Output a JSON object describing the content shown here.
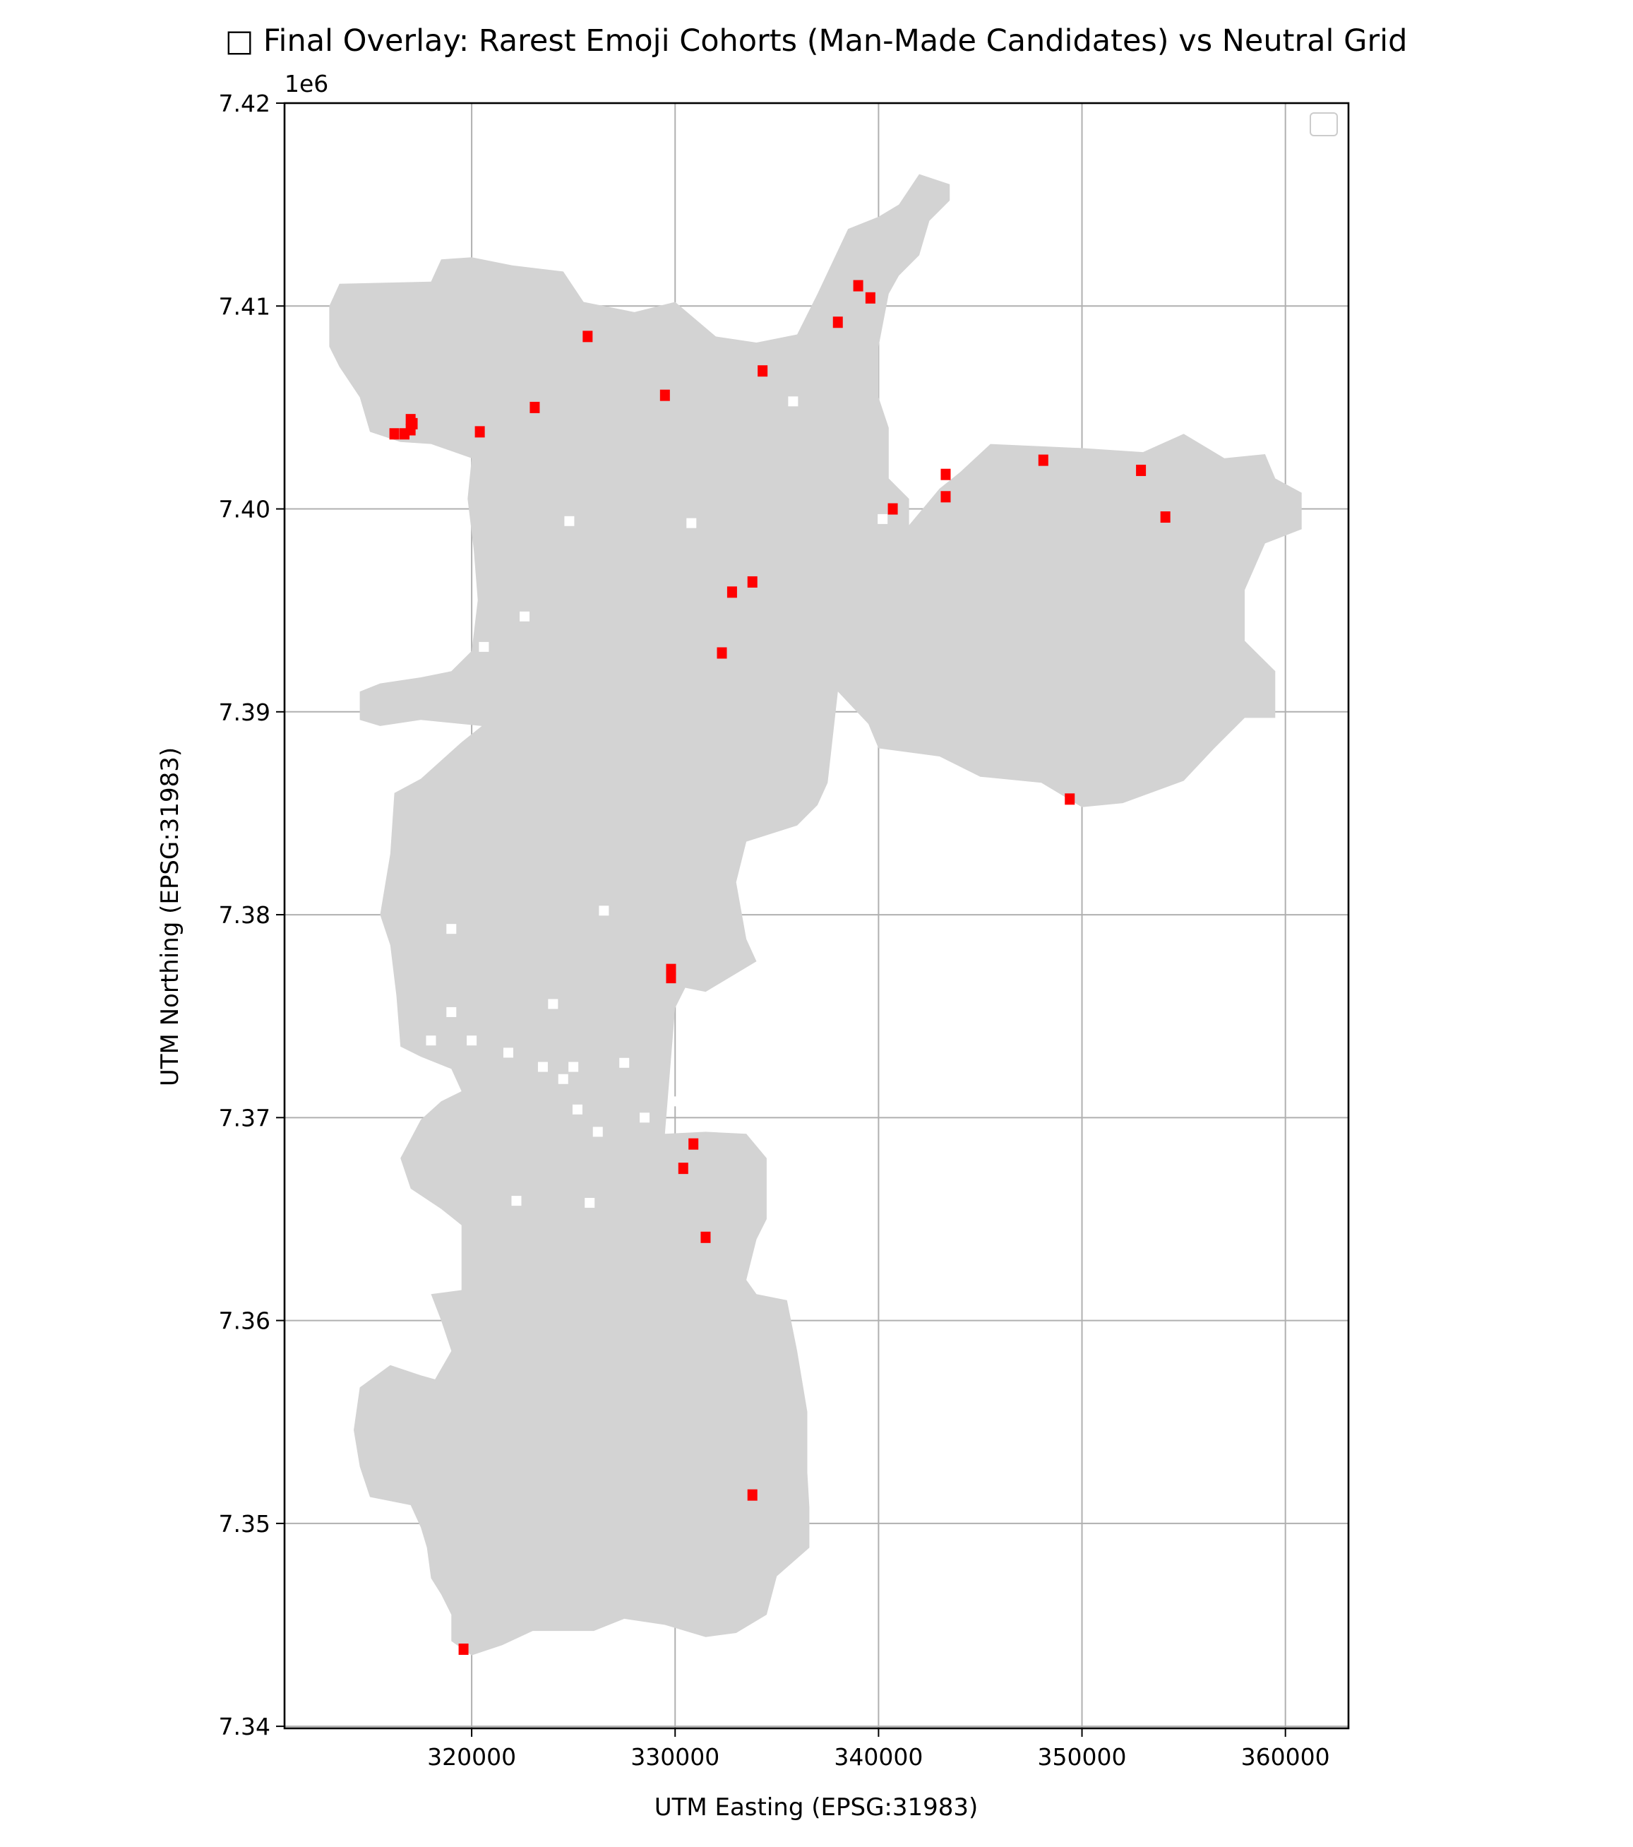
{
  "title": "□ Final Overlay: Rarest Emoji Cohorts (Man-Made Candidates) vs Neutral Grid",
  "chart_data": {
    "type": "scatter",
    "title": "□ Final Overlay: Rarest Emoji Cohorts (Man-Made Candidates) vs Neutral Grid",
    "xlabel": "UTM Easting (EPSG:31983)",
    "ylabel": "UTM Northing (EPSG:31983)",
    "y_offset_label": "1e6",
    "xlim": [
      310800,
      363100
    ],
    "ylim": [
      7339900,
      7420000
    ],
    "x_ticks": [
      320000,
      330000,
      340000,
      350000,
      360000
    ],
    "x_tick_labels": [
      "320000",
      "330000",
      "340000",
      "350000",
      "360000"
    ],
    "y_ticks": [
      7340000,
      7350000,
      7360000,
      7370000,
      7380000,
      7390000,
      7400000,
      7410000,
      7420000
    ],
    "y_tick_labels": [
      "7.34",
      "7.35",
      "7.36",
      "7.37",
      "7.38",
      "7.39",
      "7.40",
      "7.41",
      "7.42"
    ],
    "grid": true,
    "legend": "top-right (empty)",
    "background_layer": {
      "name": "neutral grid",
      "color": "#d3d3d3",
      "outline": [
        [
          313000,
          7410000
        ],
        [
          313500,
          7411100
        ],
        [
          318000,
          7411200
        ],
        [
          318500,
          7412300
        ],
        [
          320000,
          7412400
        ],
        [
          322000,
          7412000
        ],
        [
          324500,
          7411700
        ],
        [
          325500,
          7410200
        ],
        [
          328000,
          7409700
        ],
        [
          330000,
          7410200
        ],
        [
          332000,
          7408500
        ],
        [
          334000,
          7408200
        ],
        [
          336000,
          7408600
        ],
        [
          337000,
          7410600
        ],
        [
          338500,
          7413800
        ],
        [
          340000,
          7414400
        ],
        [
          341000,
          7415000
        ],
        [
          342000,
          7416500
        ],
        [
          343500,
          7416000
        ],
        [
          343500,
          7415200
        ],
        [
          342500,
          7414200
        ],
        [
          342000,
          7412500
        ],
        [
          341000,
          7411500
        ],
        [
          340500,
          7410600
        ],
        [
          340000,
          7408000
        ],
        [
          340000,
          7405500
        ],
        [
          340500,
          7404000
        ],
        [
          340500,
          7401500
        ],
        [
          341500,
          7400500
        ],
        [
          341500,
          7399200
        ],
        [
          343000,
          7401000
        ],
        [
          344000,
          7401800
        ],
        [
          345500,
          7403200
        ],
        [
          350000,
          7403000
        ],
        [
          353000,
          7402800
        ],
        [
          355000,
          7403700
        ],
        [
          357000,
          7402500
        ],
        [
          359000,
          7402700
        ],
        [
          359500,
          7401500
        ],
        [
          360800,
          7400800
        ],
        [
          360800,
          7399000
        ],
        [
          359000,
          7398300
        ],
        [
          358000,
          7396000
        ],
        [
          358000,
          7393500
        ],
        [
          359500,
          7392000
        ],
        [
          359500,
          7389700
        ],
        [
          358000,
          7389700
        ],
        [
          356500,
          7388200
        ],
        [
          355000,
          7386600
        ],
        [
          352000,
          7385500
        ],
        [
          350000,
          7385300
        ],
        [
          348000,
          7386500
        ],
        [
          345000,
          7386800
        ],
        [
          343000,
          7387800
        ],
        [
          340000,
          7388200
        ],
        [
          339500,
          7389400
        ],
        [
          338000,
          7391000
        ],
        [
          337500,
          7386500
        ],
        [
          337000,
          7385400
        ],
        [
          336000,
          7384400
        ],
        [
          333500,
          7383600
        ],
        [
          333000,
          7381600
        ],
        [
          333500,
          7378800
        ],
        [
          334000,
          7377700
        ],
        [
          331500,
          7376200
        ],
        [
          330500,
          7376400
        ],
        [
          330000,
          7375400
        ],
        [
          329500,
          7369200
        ],
        [
          331500,
          7369300
        ],
        [
          333500,
          7369200
        ],
        [
          334500,
          7368000
        ],
        [
          334500,
          7365000
        ],
        [
          334000,
          7364000
        ],
        [
          333500,
          7362000
        ],
        [
          334000,
          7361300
        ],
        [
          335500,
          7361000
        ],
        [
          336000,
          7358500
        ],
        [
          336500,
          7355500
        ],
        [
          336500,
          7352500
        ],
        [
          336600,
          7350800
        ],
        [
          336600,
          7348800
        ],
        [
          335000,
          7347400
        ],
        [
          334500,
          7345500
        ],
        [
          333000,
          7344600
        ],
        [
          331500,
          7344400
        ],
        [
          329500,
          7345000
        ],
        [
          327500,
          7345300
        ],
        [
          326000,
          7344700
        ],
        [
          323000,
          7344700
        ],
        [
          321500,
          7344000
        ],
        [
          320000,
          7343500
        ],
        [
          319000,
          7344200
        ],
        [
          319000,
          7345500
        ],
        [
          318500,
          7346500
        ],
        [
          318000,
          7347300
        ],
        [
          317800,
          7348800
        ],
        [
          317500,
          7349800
        ],
        [
          317000,
          7350900
        ],
        [
          315000,
          7351300
        ],
        [
          314500,
          7352800
        ],
        [
          314200,
          7354600
        ],
        [
          314500,
          7356700
        ],
        [
          316000,
          7357800
        ],
        [
          317500,
          7357300
        ],
        [
          318200,
          7357100
        ],
        [
          319000,
          7358500
        ],
        [
          318500,
          7360000
        ],
        [
          318000,
          7361300
        ],
        [
          319500,
          7361500
        ],
        [
          319500,
          7364700
        ],
        [
          318500,
          7365500
        ],
        [
          317000,
          7366500
        ],
        [
          316500,
          7368000
        ],
        [
          317500,
          7369900
        ],
        [
          318500,
          7370800
        ],
        [
          319500,
          7371300
        ],
        [
          319000,
          7372400
        ],
        [
          317500,
          7373000
        ],
        [
          316500,
          7373500
        ],
        [
          316300,
          7376000
        ],
        [
          316000,
          7378500
        ],
        [
          315500,
          7380000
        ],
        [
          316000,
          7383000
        ],
        [
          316200,
          7386000
        ],
        [
          317500,
          7386700
        ],
        [
          319500,
          7388500
        ],
        [
          320500,
          7389300
        ],
        [
          317500,
          7389600
        ],
        [
          315500,
          7389300
        ],
        [
          314500,
          7389600
        ],
        [
          314500,
          7391000
        ],
        [
          315500,
          7391400
        ],
        [
          317500,
          7391700
        ],
        [
          319000,
          7392000
        ],
        [
          320000,
          7393000
        ],
        [
          320300,
          7395500
        ],
        [
          320100,
          7398000
        ],
        [
          319800,
          7400500
        ],
        [
          320000,
          7402500
        ],
        [
          318000,
          7403200
        ],
        [
          316500,
          7403300
        ],
        [
          315000,
          7403800
        ],
        [
          314500,
          7405500
        ],
        [
          313500,
          7407000
        ],
        [
          313000,
          7408000
        ]
      ],
      "holes": [
        [
          326500,
          7380200
        ],
        [
          335800,
          7405300
        ],
        [
          324800,
          7399400
        ],
        [
          330800,
          7399300
        ],
        [
          340200,
          7399500
        ],
        [
          320600,
          7393200
        ],
        [
          322600,
          7394700
        ],
        [
          319000,
          7379300
        ],
        [
          319000,
          7375200
        ],
        [
          324000,
          7375600
        ],
        [
          318000,
          7373800
        ],
        [
          320000,
          7373800
        ],
        [
          321800,
          7373200
        ],
        [
          323500,
          7372500
        ],
        [
          325000,
          7372500
        ],
        [
          324500,
          7371900
        ],
        [
          327500,
          7372700
        ],
        [
          328500,
          7370000
        ],
        [
          325200,
          7370400
        ],
        [
          330200,
          7370800
        ],
        [
          322200,
          7365900
        ],
        [
          325800,
          7365800
        ],
        [
          326200,
          7369300
        ]
      ]
    },
    "series": [
      {
        "color": "#ff0000",
        "marker": "square",
        "points": [
          [
            316200,
            7403700
          ],
          [
            316700,
            7403700
          ],
          [
            317000,
            7403900
          ],
          [
            317100,
            7404200
          ],
          [
            317000,
            7404400
          ],
          [
            320400,
            7403800
          ],
          [
            323100,
            7405000
          ],
          [
            325700,
            7408500
          ],
          [
            329500,
            7405600
          ],
          [
            334300,
            7406800
          ],
          [
            338000,
            7409200
          ],
          [
            339000,
            7411000
          ],
          [
            339600,
            7410400
          ],
          [
            340700,
            7400000
          ],
          [
            343300,
            7401700
          ],
          [
            343300,
            7400600
          ],
          [
            348100,
            7402400
          ],
          [
            352900,
            7401900
          ],
          [
            354100,
            7399600
          ],
          [
            332800,
            7395900
          ],
          [
            333800,
            7396400
          ],
          [
            332300,
            7392900
          ],
          [
            349400,
            7385700
          ],
          [
            329800,
            7377300
          ],
          [
            329800,
            7376900
          ],
          [
            330900,
            7368700
          ],
          [
            330400,
            7367500
          ],
          [
            331500,
            7364100
          ],
          [
            333800,
            7351400
          ],
          [
            319600,
            7343800
          ]
        ]
      }
    ]
  }
}
